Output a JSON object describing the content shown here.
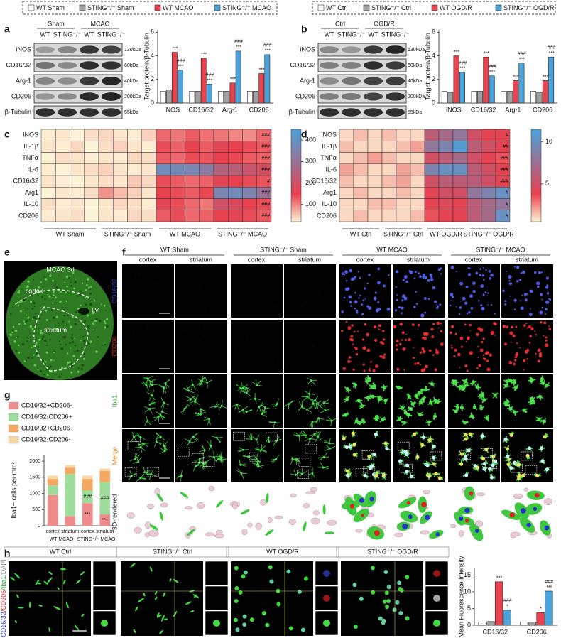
{
  "panel_labels": [
    "a",
    "b",
    "c",
    "d",
    "e",
    "f",
    "g",
    "h"
  ],
  "blots": [
    {
      "groups": [
        "Sham",
        "MCAO"
      ],
      "lanes": [
        "WT",
        "STING⁻/⁻",
        "WT",
        "STING⁻/⁻"
      ],
      "rows": [
        "iNOS",
        "CD16/32",
        "Arg-1",
        "CD206",
        "β-Tubulin"
      ],
      "sizes": [
        "130kDa",
        "60kDa",
        "40kDa",
        "200kDa",
        "55kDa"
      ]
    },
    {
      "groups": [
        "Ctrl",
        "OGD/R"
      ],
      "lanes": [
        "WT",
        "STING⁻/⁻",
        "WT",
        "STING⁻/⁻"
      ],
      "rows": [
        "iNOS",
        "CD16/32",
        "Arg-1",
        "CD206",
        "β-Tubulin"
      ],
      "sizes": [
        "130kDa",
        "60kDa",
        "40kDa",
        "200kDa",
        "55kDa"
      ]
    }
  ],
  "e": {
    "title": "MCAO 3d",
    "labels": [
      "cortex",
      "striatum",
      "LV"
    ]
  },
  "f": {
    "groups": [
      "WT Sham",
      "STING⁻/⁻ Sham",
      "WT MCAO",
      "STING⁻/⁻ MCAO"
    ],
    "regions": [
      "cortex",
      "striatum"
    ],
    "rows": [
      "CD16/32",
      "CD206",
      "Iba1",
      "Merge",
      "3D-rendered"
    ]
  },
  "h": {
    "channels": [
      "CD16/32",
      "/CD206",
      "/Iba1",
      "/DAPI"
    ]
  },
  "chart_data": [
    {
      "type": "bar",
      "ylabel": "Target protein/β-Tubulin",
      "categories": [
        "iNOS",
        "CD16/32",
        "Arg-1",
        "CD206"
      ],
      "ylim": [
        0,
        6.2
      ],
      "yticks": [
        0,
        2,
        4,
        6
      ],
      "series": [
        {
          "name": "WT Sham",
          "color": "#ffffff",
          "values": [
            1.0,
            1.0,
            1.0,
            1.0
          ]
        },
        {
          "name": "STING⁻/⁻ Sham",
          "color": "#a0a0a0",
          "values": [
            1.1,
            1.0,
            1.0,
            1.0
          ]
        },
        {
          "name": "WT MCAO",
          "color": "#e8434f",
          "values": [
            4.3,
            3.8,
            1.7,
            2.5
          ],
          "stars": [
            "***",
            "***",
            "***",
            "***"
          ]
        },
        {
          "name": "STING⁻/⁻ MCAO",
          "color": "#4aa3dc",
          "values": [
            2.8,
            1.6,
            4.4,
            4.1
          ],
          "stars": [
            "***",
            "***",
            "***",
            "***"
          ],
          "hashes": [
            "###",
            "###",
            "###",
            "###"
          ]
        }
      ]
    },
    {
      "type": "bar",
      "ylabel": "Target protein/β-Tubulin",
      "categories": [
        "iNOS",
        "CD16/32",
        "Arg-1",
        "CD206"
      ],
      "ylim": [
        0,
        6.2
      ],
      "yticks": [
        0,
        2,
        4,
        6
      ],
      "series": [
        {
          "name": "WT Ctrl",
          "color": "#ffffff",
          "values": [
            1.0,
            1.0,
            1.0,
            1.0
          ]
        },
        {
          "name": "STING⁻/⁻ Ctrl",
          "color": "#a0a0a0",
          "values": [
            0.9,
            1.0,
            1.0,
            0.9
          ]
        },
        {
          "name": "WT OGD/R",
          "color": "#e8434f",
          "values": [
            4.0,
            3.9,
            1.9,
            1.9
          ],
          "stars": [
            "***",
            "***",
            "***",
            "***"
          ]
        },
        {
          "name": "STING⁻/⁻ OGD/R",
          "color": "#4aa3dc",
          "values": [
            2.6,
            2.3,
            3.4,
            3.9
          ],
          "stars": [
            "***",
            "***",
            "***",
            "***"
          ],
          "hashes": [
            "###",
            "###",
            "###",
            "###"
          ]
        }
      ]
    },
    {
      "type": "heatmap",
      "rows": [
        "iNOS",
        "IL-1β",
        "TNFα",
        "IL-6",
        "CD16/32",
        "Arg1",
        "IL-10",
        "CD206"
      ],
      "groups": [
        "WT Sham",
        "STING⁻/⁻ Sham",
        "WT MCAO",
        "STING⁻/⁻ MCAO"
      ],
      "values": [
        [
          25,
          30,
          20,
          35,
          40,
          30,
          25,
          45,
          120,
          110,
          130,
          115,
          110,
          100,
          95,
          120
        ],
        [
          30,
          25,
          40,
          20,
          35,
          45,
          30,
          25,
          140,
          125,
          150,
          130,
          160,
          150,
          140,
          130
        ],
        [
          20,
          35,
          30,
          25,
          30,
          25,
          40,
          35,
          130,
          120,
          140,
          135,
          150,
          145,
          130,
          125
        ],
        [
          25,
          20,
          30,
          35,
          45,
          30,
          25,
          30,
          380,
          370,
          360,
          330,
          250,
          240,
          210,
          190
        ],
        [
          30,
          25,
          20,
          30,
          35,
          30,
          50,
          40,
          140,
          130,
          120,
          125,
          160,
          150,
          140,
          135
        ],
        [
          20,
          30,
          25,
          35,
          90,
          60,
          45,
          30,
          150,
          140,
          130,
          145,
          360,
          380,
          350,
          300
        ],
        [
          35,
          25,
          30,
          20,
          30,
          40,
          35,
          25,
          160,
          140,
          120,
          110,
          200,
          180,
          150,
          140
        ],
        [
          25,
          30,
          35,
          20,
          30,
          25,
          40,
          35,
          130,
          140,
          120,
          125,
          150,
          160,
          140,
          130
        ]
      ],
      "zlim": [
        20,
        450
      ],
      "zticks": [
        100,
        200,
        300,
        400
      ],
      "colors": [
        "#fdf3d6",
        "#e8414e",
        "#4aa3dc"
      ],
      "row_marks": [
        "###",
        "###",
        "###",
        "###",
        "#",
        "###",
        "###",
        "###"
      ]
    },
    {
      "type": "heatmap",
      "rows": [
        "iNOS",
        "IL-1β",
        "TNFα",
        "IL-6",
        "CD16/32",
        "Arg1",
        "IL-10",
        "CD206"
      ],
      "groups": [
        "WT Ctrl",
        "STING⁻/⁻ Ctrl",
        "WT OGD/R",
        "STING⁻/⁻ OGD/R"
      ],
      "values": [
        [
          1,
          1.5,
          1,
          1.5,
          1,
          1,
          6,
          7,
          8,
          5,
          4,
          4
        ],
        [
          1.5,
          1,
          1,
          1,
          1.5,
          2,
          8,
          9,
          11,
          6,
          5,
          4
        ],
        [
          1,
          1.5,
          2,
          1.5,
          1,
          1,
          5,
          6,
          7,
          5,
          4,
          3.5
        ],
        [
          2,
          1.5,
          1,
          1,
          2,
          1.5,
          9,
          10,
          10,
          6,
          5,
          4
        ],
        [
          1.5,
          1,
          1,
          1.5,
          2,
          1,
          5,
          6,
          6,
          6,
          5,
          4
        ],
        [
          1,
          1.5,
          1,
          1,
          1.5,
          1,
          4,
          5,
          5,
          8,
          9,
          10
        ],
        [
          1,
          1,
          1.5,
          1.5,
          1,
          1,
          4,
          4.5,
          4,
          6,
          7,
          8
        ],
        [
          1,
          1.5,
          1,
          1,
          1,
          1.5,
          3.5,
          4,
          4,
          6,
          7,
          10
        ]
      ],
      "zlim": [
        0.5,
        11.5
      ],
      "zticks": [
        5,
        10
      ],
      "colors": [
        "#fdf3d6",
        "#e8414e",
        "#4aa3dc"
      ],
      "row_marks": [
        "#",
        "##",
        "###",
        "###",
        "###",
        "#",
        "#",
        "#"
      ]
    },
    {
      "type": "stacked_bar",
      "ylabel": "Iba1+ cells per mm²",
      "categories": [
        "cortex",
        "striatum",
        "cortex",
        "striatum"
      ],
      "groups": [
        "WT MCAO",
        "STING⁻/⁻ MCAO"
      ],
      "ylim": [
        0,
        2200
      ],
      "yticks": [
        0,
        500,
        1000,
        1500,
        2000
      ],
      "series": [
        {
          "name": "CD16/32+CD206-",
          "color": "#f08c8c",
          "values": [
            950,
            300,
            700,
            350
          ],
          "marks": [
            null,
            null,
            "***",
            "***"
          ]
        },
        {
          "name": "CD16/32-CD206+",
          "color": "#9ddc9a",
          "values": [
            300,
            1300,
            400,
            1000
          ],
          "marks": [
            null,
            null,
            "###",
            "###"
          ]
        },
        {
          "name": "CD16/32+CD206+",
          "color": "#f5a85f",
          "values": [
            200,
            200,
            350,
            350
          ]
        },
        {
          "name": "CD16/32-CD206-",
          "color": "#f7d9a8",
          "values": [
            100,
            80,
            100,
            70
          ]
        }
      ]
    },
    {
      "type": "bar",
      "ylabel": "Mean Fluorescence Intensity",
      "categories": [
        "CD16/32",
        "CD206"
      ],
      "ylim": [
        0,
        17
      ],
      "yticks": [
        0,
        5,
        10,
        15
      ],
      "series": [
        {
          "name": "WT Ctrl",
          "color": "#ffffff",
          "values": [
            1.0,
            1.0
          ]
        },
        {
          "name": "STING⁻/⁻ Ctrl",
          "color": "#a0a0a0",
          "values": [
            1.1,
            1.0
          ]
        },
        {
          "name": "WT OGD/R",
          "color": "#e8434f",
          "values": [
            13.0,
            3.8
          ],
          "stars": [
            "***",
            "*"
          ]
        },
        {
          "name": "STING⁻/⁻ OGD/R",
          "color": "#4aa3dc",
          "values": [
            4.5,
            10.2
          ],
          "stars": [
            "*",
            "***"
          ],
          "hashes": [
            "###",
            "###"
          ]
        }
      ]
    }
  ]
}
